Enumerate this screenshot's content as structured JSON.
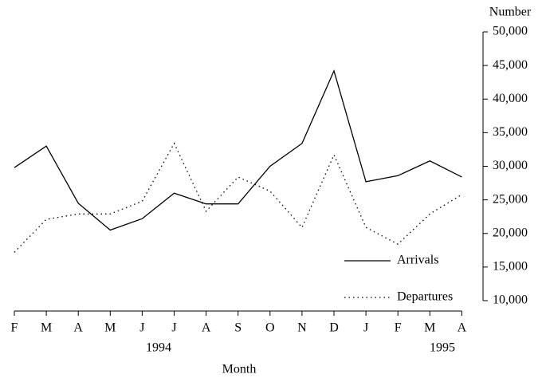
{
  "chart_data": {
    "type": "line",
    "x_label": "Month",
    "y_label": "Number",
    "categories": [
      "F",
      "M",
      "A",
      "M",
      "J",
      "J",
      "A",
      "S",
      "O",
      "N",
      "D",
      "J",
      "F",
      "M",
      "A"
    ],
    "years": [
      "1994",
      "1995"
    ],
    "series": [
      {
        "name": "Arrivals",
        "color": "#000000",
        "dash": "solid",
        "values": [
          29800,
          33000,
          24500,
          20500,
          22200,
          26000,
          24400,
          24400,
          30000,
          33400,
          44200,
          27700,
          28600,
          30800,
          28400
        ]
      },
      {
        "name": "Departures",
        "color": "#000000",
        "dash": "dotted",
        "values": [
          17200,
          22100,
          22900,
          22900,
          24800,
          33400,
          23300,
          28400,
          26300,
          20900,
          31700,
          20900,
          18400,
          22900,
          25800
        ]
      }
    ],
    "ylim": [
      10000,
      50000
    ],
    "yticks": [
      {
        "value": 10000,
        "label": "10,000"
      },
      {
        "value": 15000,
        "label": "15,000"
      },
      {
        "value": 20000,
        "label": "20,000"
      },
      {
        "value": 25000,
        "label": "25,000"
      },
      {
        "value": 30000,
        "label": "30,000"
      },
      {
        "value": 35000,
        "label": "35,000"
      },
      {
        "value": 40000,
        "label": "40,000"
      },
      {
        "value": 45000,
        "label": "45,000"
      },
      {
        "value": 50000,
        "label": "50,000"
      }
    ],
    "y_axis_side": "right",
    "grid": false,
    "legend": "lower right"
  }
}
